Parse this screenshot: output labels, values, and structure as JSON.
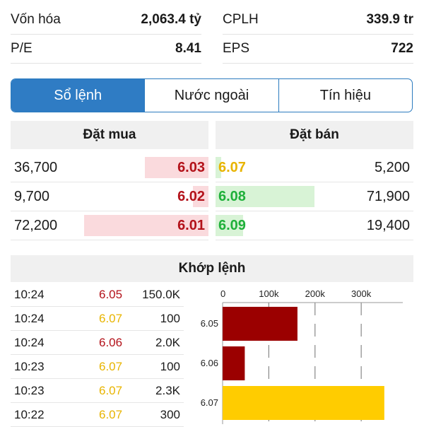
{
  "stats": [
    {
      "label": "Vốn hóa",
      "value": "2,063.4 tỷ"
    },
    {
      "label": "CPLH",
      "value": "339.9 tr"
    },
    {
      "label": "P/E",
      "value": "8.41"
    },
    {
      "label": "EPS",
      "value": "722"
    }
  ],
  "tabs": [
    {
      "label": "Sổ lệnh",
      "active": true
    },
    {
      "label": "Nước ngoài",
      "active": false
    },
    {
      "label": "Tín hiệu",
      "active": false
    }
  ],
  "orderbook": {
    "buy_title": "Đặt mua",
    "sell_title": "Đặt bán",
    "buy": [
      {
        "volume": "36,700",
        "price": "6.03",
        "price_color": "red",
        "fill": 0.32
      },
      {
        "volume": "9,700",
        "price": "6.02",
        "price_color": "red",
        "fill": 0.08
      },
      {
        "volume": "72,200",
        "price": "6.01",
        "price_color": "red",
        "fill": 0.63
      }
    ],
    "sell": [
      {
        "price": "6.07",
        "price_color": "yellow",
        "volume": "5,200",
        "fill": 0.03
      },
      {
        "price": "6.08",
        "price_color": "green",
        "volume": "71,900",
        "fill": 0.5
      },
      {
        "price": "6.09",
        "price_color": "green",
        "volume": "19,400",
        "fill": 0.14
      }
    ]
  },
  "matched": {
    "title": "Khớp lệnh",
    "trades": [
      {
        "time": "10:24",
        "price": "6.05",
        "price_color": "red",
        "volume": "150.0K"
      },
      {
        "time": "10:24",
        "price": "6.07",
        "price_color": "yellow",
        "volume": "100"
      },
      {
        "time": "10:24",
        "price": "6.06",
        "price_color": "red",
        "volume": "2.0K"
      },
      {
        "time": "10:23",
        "price": "6.07",
        "price_color": "yellow",
        "volume": "100"
      },
      {
        "time": "10:23",
        "price": "6.07",
        "price_color": "yellow",
        "volume": "2.3K"
      },
      {
        "time": "10:22",
        "price": "6.07",
        "price_color": "yellow",
        "volume": "300"
      }
    ]
  },
  "colors": {
    "red": "#b3121a",
    "yellow": "#e8b400",
    "green": "#1fb03a",
    "accent": "#2f7cc4",
    "bar_red": "#9b0000",
    "bar_yellow": "#ffcc00"
  },
  "chart_data": {
    "type": "bar",
    "orientation": "horizontal",
    "categories": [
      "6.05",
      "6.06",
      "6.07"
    ],
    "values": [
      162000,
      48000,
      350000
    ],
    "bar_colors": [
      "#9b0000",
      "#9b0000",
      "#ffcc00"
    ],
    "xticks": [
      {
        "value": 0,
        "label": "0"
      },
      {
        "value": 100000,
        "label": "100k"
      },
      {
        "value": 200000,
        "label": "200k"
      },
      {
        "value": 300000,
        "label": "300k"
      }
    ],
    "xlim": [
      0,
      390000
    ],
    "grid": true
  }
}
